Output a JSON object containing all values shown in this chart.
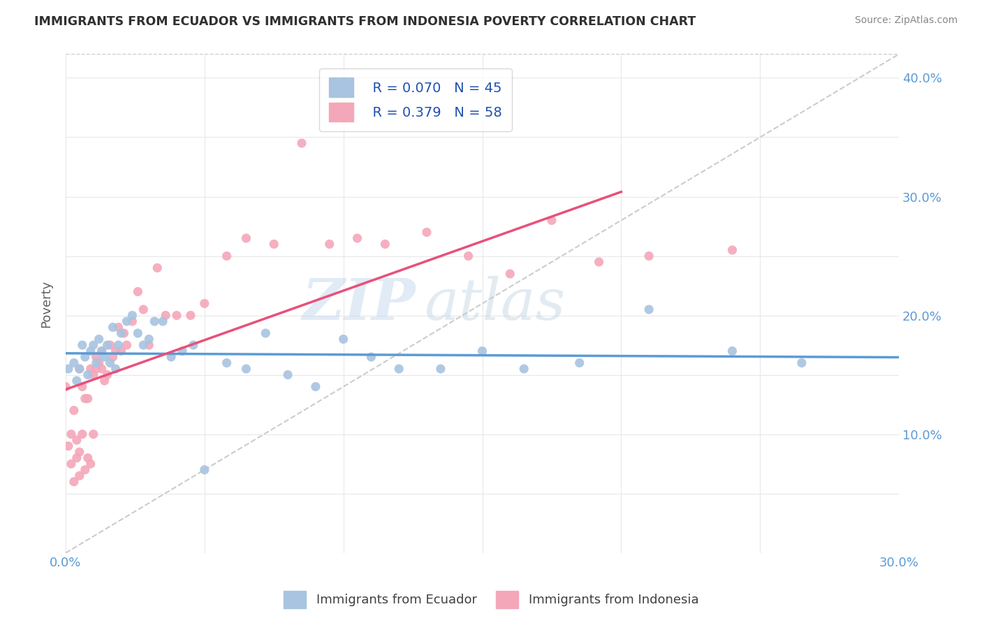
{
  "title": "IMMIGRANTS FROM ECUADOR VS IMMIGRANTS FROM INDONESIA POVERTY CORRELATION CHART",
  "source": "Source: ZipAtlas.com",
  "ylabel": "Poverty",
  "xlim": [
    0.0,
    0.3
  ],
  "ylim": [
    0.0,
    0.42
  ],
  "xtick_vals": [
    0.0,
    0.05,
    0.1,
    0.15,
    0.2,
    0.25,
    0.3
  ],
  "xticklabels": [
    "0.0%",
    "",
    "",
    "",
    "",
    "",
    "30.0%"
  ],
  "ytick_vals": [
    0.0,
    0.05,
    0.1,
    0.15,
    0.2,
    0.25,
    0.3,
    0.35,
    0.4
  ],
  "yticklabels_right": [
    "",
    "",
    "10.0%",
    "",
    "20.0%",
    "",
    "30.0%",
    "",
    "40.0%"
  ],
  "ecuador_color": "#a8c4e0",
  "indonesia_color": "#f4a7b9",
  "trendline_ecuador_color": "#5b9bd5",
  "trendline_indonesia_color": "#e8507a",
  "diagonal_color": "#cccccc",
  "watermark": "ZIPatlas",
  "legend_R_ecuador": "R = 0.070",
  "legend_N_ecuador": "N = 45",
  "legend_R_indonesia": "R = 0.379",
  "legend_N_indonesia": "N = 58",
  "ecuador_x": [
    0.001,
    0.003,
    0.004,
    0.005,
    0.006,
    0.007,
    0.008,
    0.009,
    0.01,
    0.011,
    0.012,
    0.013,
    0.014,
    0.015,
    0.016,
    0.017,
    0.018,
    0.019,
    0.02,
    0.022,
    0.024,
    0.026,
    0.028,
    0.03,
    0.032,
    0.035,
    0.038,
    0.042,
    0.046,
    0.05,
    0.058,
    0.065,
    0.072,
    0.08,
    0.09,
    0.1,
    0.11,
    0.12,
    0.135,
    0.15,
    0.165,
    0.185,
    0.21,
    0.24,
    0.265
  ],
  "ecuador_y": [
    0.155,
    0.16,
    0.145,
    0.155,
    0.175,
    0.165,
    0.15,
    0.17,
    0.175,
    0.16,
    0.18,
    0.17,
    0.165,
    0.175,
    0.16,
    0.19,
    0.155,
    0.175,
    0.185,
    0.195,
    0.2,
    0.185,
    0.175,
    0.18,
    0.195,
    0.195,
    0.165,
    0.17,
    0.175,
    0.07,
    0.16,
    0.155,
    0.185,
    0.15,
    0.14,
    0.18,
    0.165,
    0.155,
    0.155,
    0.17,
    0.155,
    0.16,
    0.205,
    0.17,
    0.16
  ],
  "indonesia_x": [
    0.0,
    0.001,
    0.002,
    0.002,
    0.003,
    0.003,
    0.004,
    0.004,
    0.005,
    0.005,
    0.005,
    0.006,
    0.006,
    0.007,
    0.007,
    0.008,
    0.008,
    0.009,
    0.009,
    0.01,
    0.01,
    0.011,
    0.011,
    0.012,
    0.013,
    0.013,
    0.014,
    0.015,
    0.016,
    0.017,
    0.018,
    0.019,
    0.02,
    0.021,
    0.022,
    0.024,
    0.026,
    0.028,
    0.03,
    0.033,
    0.036,
    0.04,
    0.045,
    0.05,
    0.058,
    0.065,
    0.075,
    0.085,
    0.095,
    0.105,
    0.115,
    0.13,
    0.145,
    0.16,
    0.175,
    0.192,
    0.21,
    0.24
  ],
  "indonesia_y": [
    0.14,
    0.09,
    0.1,
    0.075,
    0.06,
    0.12,
    0.08,
    0.095,
    0.065,
    0.085,
    0.155,
    0.1,
    0.14,
    0.07,
    0.13,
    0.08,
    0.13,
    0.075,
    0.155,
    0.1,
    0.15,
    0.155,
    0.165,
    0.16,
    0.17,
    0.155,
    0.145,
    0.15,
    0.175,
    0.165,
    0.17,
    0.19,
    0.17,
    0.185,
    0.175,
    0.195,
    0.22,
    0.205,
    0.175,
    0.24,
    0.2,
    0.2,
    0.2,
    0.21,
    0.25,
    0.265,
    0.26,
    0.345,
    0.26,
    0.265,
    0.26,
    0.27,
    0.25,
    0.235,
    0.28,
    0.245,
    0.25,
    0.255
  ]
}
